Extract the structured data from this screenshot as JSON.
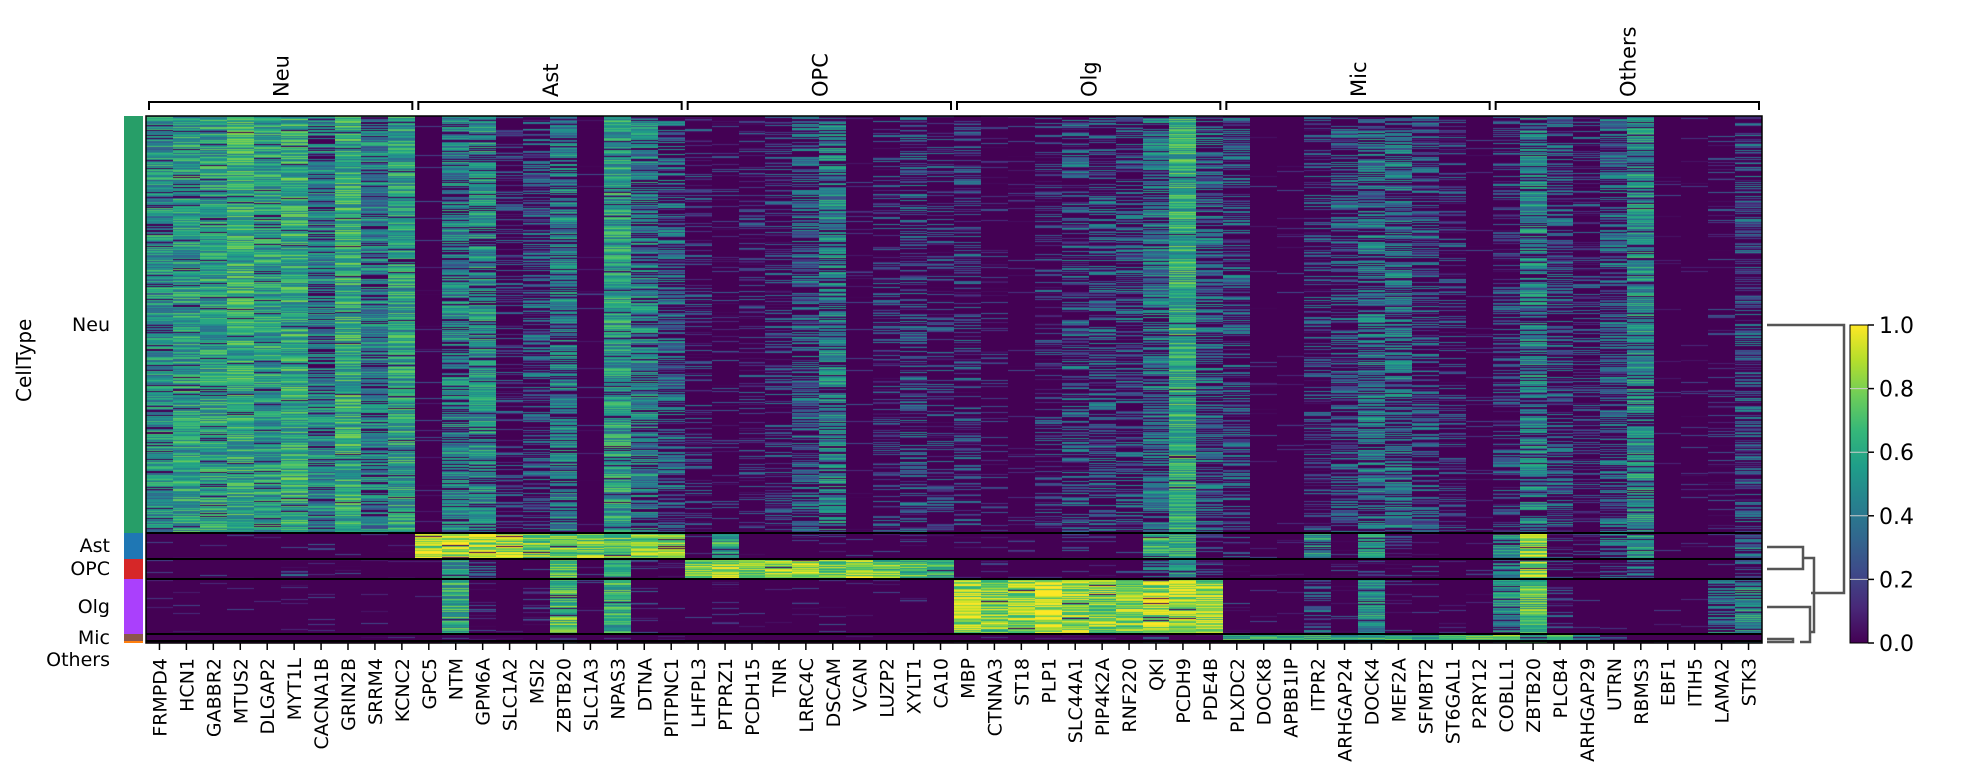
{
  "chart_data": {
    "type": "heatmap",
    "ylabel": "CellType",
    "cell_types": [
      "Neu",
      "Ast",
      "OPC",
      "Olg",
      "Mic",
      "Others"
    ],
    "cell_type_colors": [
      "#279e68",
      "#1f77b4",
      "#d62728",
      "#aa40fc",
      "#8c564b",
      "#ff7f0e"
    ],
    "gene_groups": [
      {
        "label": "Neu",
        "genes": [
          "FRMPD4",
          "HCN1",
          "GABBR2",
          "MTUS2",
          "DLGAP2",
          "MYT1L",
          "CACNA1B",
          "GRIN2B",
          "SRRM4",
          "KCNC2"
        ]
      },
      {
        "label": "Ast",
        "genes": [
          "GPC5",
          "NTM",
          "GPM6A",
          "SLC1A2",
          "MSI2",
          "ZBTB20",
          "SLC1A3",
          "NPAS3",
          "DTNA",
          "PITPNC1"
        ]
      },
      {
        "label": "OPC",
        "genes": [
          "LHFPL3",
          "PTPRZ1",
          "PCDH15",
          "TNR",
          "LRRC4C",
          "DSCAM",
          "VCAN",
          "LUZP2",
          "XYLT1",
          "CA10"
        ]
      },
      {
        "label": "Olg",
        "genes": [
          "MBP",
          "CTNNA3",
          "ST18",
          "PLP1",
          "SLC44A1",
          "PIP4K2A",
          "RNF220",
          "QKI",
          "PCDH9",
          "PDE4B"
        ]
      },
      {
        "label": "Mic",
        "genes": [
          "PLXDC2",
          "DOCK8",
          "APBB1IP",
          "ITPR2",
          "ARHGAP24",
          "DOCK4",
          "MEF2A",
          "SFMBT2",
          "ST6GAL1",
          "P2RY12"
        ]
      },
      {
        "label": "Others",
        "genes": [
          "COBLL1",
          "ZBTB20",
          "PLCB4",
          "ARHGAP29",
          "UTRN",
          "RBMS3",
          "EBF1",
          "ITIH5",
          "LAMA2",
          "STK3"
        ]
      }
    ],
    "mean_expression_by_cell_type": {
      "Neu": [
        0.5,
        0.55,
        0.55,
        0.6,
        0.55,
        0.6,
        0.45,
        0.6,
        0.45,
        0.55,
        0.05,
        0.45,
        0.5,
        0.2,
        0.3,
        0.45,
        0.02,
        0.55,
        0.45,
        0.35,
        0.2,
        0.1,
        0.15,
        0.2,
        0.35,
        0.45,
        0.05,
        0.2,
        0.3,
        0.2,
        0.25,
        0.1,
        0.05,
        0.2,
        0.3,
        0.3,
        0.3,
        0.4,
        0.6,
        0.35,
        0.3,
        0.02,
        0.02,
        0.25,
        0.3,
        0.4,
        0.4,
        0.3,
        0.2,
        0.05,
        0.25,
        0.45,
        0.3,
        0.2,
        0.35,
        0.5,
        0.02,
        0.02,
        0.1,
        0.3
      ],
      "Ast": [
        0.03,
        0.02,
        0.03,
        0.03,
        0.05,
        0.03,
        0.1,
        0.03,
        0.03,
        0.03,
        0.85,
        0.9,
        0.85,
        0.85,
        0.75,
        0.8,
        0.75,
        0.75,
        0.75,
        0.85,
        0.05,
        0.6,
        0.05,
        0.05,
        0.1,
        0.1,
        0.02,
        0.05,
        0.1,
        0.02,
        0.05,
        0.05,
        0.02,
        0.05,
        0.1,
        0.1,
        0.1,
        0.6,
        0.6,
        0.2,
        0.2,
        0.02,
        0.02,
        0.5,
        0.1,
        0.5,
        0.2,
        0.1,
        0.05,
        0.02,
        0.5,
        0.8,
        0.2,
        0.1,
        0.4,
        0.5,
        0.02,
        0.02,
        0.05,
        0.4
      ],
      "OPC": [
        0.02,
        0.02,
        0.05,
        0.03,
        0.02,
        0.2,
        0.02,
        0.2,
        0.03,
        0.03,
        0.1,
        0.5,
        0.3,
        0.05,
        0.1,
        0.7,
        0.05,
        0.6,
        0.1,
        0.1,
        0.8,
        0.85,
        0.75,
        0.8,
        0.85,
        0.8,
        0.85,
        0.75,
        0.7,
        0.6,
        0.05,
        0.05,
        0.02,
        0.05,
        0.1,
        0.1,
        0.1,
        0.4,
        0.5,
        0.2,
        0.1,
        0.02,
        0.02,
        0.1,
        0.1,
        0.2,
        0.1,
        0.1,
        0.05,
        0.02,
        0.4,
        0.8,
        0.2,
        0.1,
        0.3,
        0.4,
        0.02,
        0.02,
        0.05,
        0.3
      ],
      "Olg": [
        0.02,
        0.02,
        0.02,
        0.03,
        0.03,
        0.02,
        0.02,
        0.02,
        0.02,
        0.02,
        0.05,
        0.6,
        0.1,
        0.05,
        0.1,
        0.7,
        0.05,
        0.6,
        0.1,
        0.05,
        0.02,
        0.05,
        0.02,
        0.02,
        0.05,
        0.05,
        0.02,
        0.02,
        0.05,
        0.02,
        0.85,
        0.8,
        0.85,
        0.9,
        0.85,
        0.8,
        0.8,
        0.85,
        0.85,
        0.85,
        0.1,
        0.02,
        0.02,
        0.3,
        0.1,
        0.5,
        0.1,
        0.05,
        0.05,
        0.02,
        0.5,
        0.7,
        0.2,
        0.05,
        0.05,
        0.02,
        0.02,
        0.02,
        0.4,
        0.5
      ],
      "Mic": [
        0.02,
        0.02,
        0.02,
        0.02,
        0.02,
        0.02,
        0.02,
        0.02,
        0.02,
        0.02,
        0.02,
        0.05,
        0.05,
        0.02,
        0.02,
        0.3,
        0.02,
        0.1,
        0.02,
        0.02,
        0.02,
        0.02,
        0.02,
        0.02,
        0.02,
        0.02,
        0.02,
        0.02,
        0.02,
        0.02,
        0.05,
        0.05,
        0.02,
        0.05,
        0.05,
        0.05,
        0.05,
        0.1,
        0.05,
        0.05,
        0.6,
        0.6,
        0.6,
        0.55,
        0.6,
        0.6,
        0.6,
        0.6,
        0.7,
        0.8,
        0.8,
        0.5,
        0.6,
        0.4,
        0.3,
        0.02,
        0.02,
        0.02,
        0.02,
        0.02
      ],
      "Others": [
        0.05,
        0.02,
        0.02,
        0.02,
        0.02,
        0.02,
        0.02,
        0.02,
        0.02,
        0.02,
        0.05,
        0.05,
        0.05,
        0.05,
        0.05,
        0.3,
        0.02,
        0.1,
        0.05,
        0.05,
        0.05,
        0.05,
        0.05,
        0.05,
        0.05,
        0.05,
        0.02,
        0.05,
        0.05,
        0.05,
        0.05,
        0.05,
        0.05,
        0.05,
        0.05,
        0.05,
        0.05,
        0.3,
        0.1,
        0.05,
        0.1,
        0.05,
        0.05,
        0.05,
        0.05,
        0.1,
        0.05,
        0.05,
        0.05,
        0.05,
        0.3,
        0.6,
        0.1,
        0.1,
        0.1,
        0.1,
        0.2,
        0.2,
        0.2,
        0.3
      ]
    },
    "colormap": "viridis",
    "colorbar": {
      "range": [
        0.0,
        1.0
      ],
      "ticks": [
        "0.0",
        "0.2",
        "0.4",
        "0.6",
        "0.8",
        "1.0"
      ]
    },
    "dendrogram": {
      "order": [
        "Neu",
        "Ast",
        "OPC",
        "Olg",
        "Mic",
        "Others"
      ],
      "merges": [
        [
          "Mic",
          "Others"
        ],
        [
          "Ast",
          "OPC"
        ],
        [
          "Olg",
          "Mic+Others"
        ],
        [
          "Ast+OPC",
          "Olg+Mic+Others"
        ],
        [
          "Neu",
          "rest"
        ]
      ]
    }
  }
}
